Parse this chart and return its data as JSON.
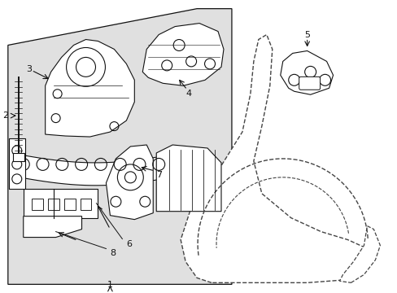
{
  "bg_color": "#ffffff",
  "box_bg": "#e0e0e0",
  "line_color": "#111111",
  "dashed_color": "#444444",
  "fig_width": 4.89,
  "fig_height": 3.6,
  "dpi": 100,
  "label_fs": 8,
  "lw": 0.8
}
